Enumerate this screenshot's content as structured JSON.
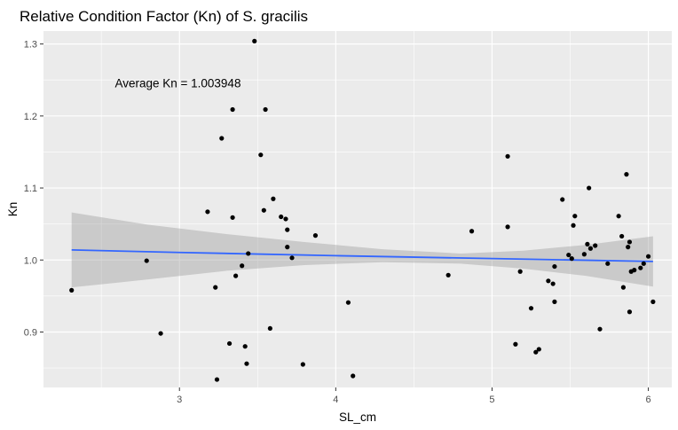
{
  "chart_data": {
    "type": "scatter",
    "title": "Relative Condition Factor (Kn) of S. gracilis",
    "xlabel": "SL_cm",
    "ylabel": "Kn",
    "xlim": [
      2.13,
      6.15
    ],
    "ylim": [
      0.823,
      1.318
    ],
    "x_ticks": [
      3,
      4,
      5,
      6
    ],
    "y_ticks": [
      0.9,
      1.0,
      1.1,
      1.2,
      1.3
    ],
    "x_tick_labels": [
      "3",
      "4",
      "5",
      "6"
    ],
    "y_tick_labels": [
      "0.9",
      "1.0",
      "1.1",
      "1.2",
      "1.3"
    ],
    "grid": true,
    "annotation": {
      "text": "Average Kn = 1.003948",
      "x": 2.99,
      "y": 1.246
    },
    "points": [
      {
        "x": 2.31,
        "y": 0.958
      },
      {
        "x": 2.79,
        "y": 0.999
      },
      {
        "x": 2.88,
        "y": 0.898
      },
      {
        "x": 3.18,
        "y": 1.067
      },
      {
        "x": 3.23,
        "y": 0.962
      },
      {
        "x": 3.24,
        "y": 0.834
      },
      {
        "x": 3.27,
        "y": 1.169
      },
      {
        "x": 3.32,
        "y": 0.884
      },
      {
        "x": 3.34,
        "y": 1.209
      },
      {
        "x": 3.34,
        "y": 1.059
      },
      {
        "x": 3.36,
        "y": 0.978
      },
      {
        "x": 3.4,
        "y": 0.992
      },
      {
        "x": 3.42,
        "y": 0.88
      },
      {
        "x": 3.43,
        "y": 0.856
      },
      {
        "x": 3.44,
        "y": 1.009
      },
      {
        "x": 3.48,
        "y": 1.304
      },
      {
        "x": 3.52,
        "y": 1.146
      },
      {
        "x": 3.54,
        "y": 1.069
      },
      {
        "x": 3.55,
        "y": 1.209
      },
      {
        "x": 3.58,
        "y": 0.905
      },
      {
        "x": 3.6,
        "y": 1.085
      },
      {
        "x": 3.65,
        "y": 1.06
      },
      {
        "x": 3.68,
        "y": 1.057
      },
      {
        "x": 3.69,
        "y": 1.042
      },
      {
        "x": 3.69,
        "y": 1.018
      },
      {
        "x": 3.72,
        "y": 1.003
      },
      {
        "x": 3.79,
        "y": 0.855
      },
      {
        "x": 3.87,
        "y": 1.034
      },
      {
        "x": 4.08,
        "y": 0.941
      },
      {
        "x": 4.11,
        "y": 0.839
      },
      {
        "x": 4.72,
        "y": 0.979
      },
      {
        "x": 4.87,
        "y": 1.04
      },
      {
        "x": 5.1,
        "y": 1.144
      },
      {
        "x": 5.1,
        "y": 1.046
      },
      {
        "x": 5.15,
        "y": 0.883
      },
      {
        "x": 5.18,
        "y": 0.984
      },
      {
        "x": 5.25,
        "y": 0.933
      },
      {
        "x": 5.28,
        "y": 0.872
      },
      {
        "x": 5.3,
        "y": 0.876
      },
      {
        "x": 5.36,
        "y": 0.971
      },
      {
        "x": 5.39,
        "y": 0.967
      },
      {
        "x": 5.4,
        "y": 0.942
      },
      {
        "x": 5.4,
        "y": 0.991
      },
      {
        "x": 5.45,
        "y": 1.084
      },
      {
        "x": 5.49,
        "y": 1.007
      },
      {
        "x": 5.51,
        "y": 1.002
      },
      {
        "x": 5.52,
        "y": 1.048
      },
      {
        "x": 5.53,
        "y": 1.061
      },
      {
        "x": 5.59,
        "y": 1.008
      },
      {
        "x": 5.61,
        "y": 1.022
      },
      {
        "x": 5.62,
        "y": 1.1
      },
      {
        "x": 5.63,
        "y": 1.016
      },
      {
        "x": 5.66,
        "y": 1.02
      },
      {
        "x": 5.69,
        "y": 0.904
      },
      {
        "x": 5.74,
        "y": 0.995
      },
      {
        "x": 5.81,
        "y": 1.061
      },
      {
        "x": 5.83,
        "y": 1.033
      },
      {
        "x": 5.84,
        "y": 0.962
      },
      {
        "x": 5.86,
        "y": 1.119
      },
      {
        "x": 5.87,
        "y": 1.018
      },
      {
        "x": 5.88,
        "y": 0.928
      },
      {
        "x": 5.88,
        "y": 1.025
      },
      {
        "x": 5.89,
        "y": 0.984
      },
      {
        "x": 5.91,
        "y": 0.986
      },
      {
        "x": 5.95,
        "y": 0.989
      },
      {
        "x": 5.97,
        "y": 0.995
      },
      {
        "x": 6.0,
        "y": 1.005
      },
      {
        "x": 6.03,
        "y": 0.942
      }
    ],
    "fit_line": {
      "color": "#3366FF",
      "x": [
        2.31,
        3.0,
        4.0,
        5.0,
        6.03
      ],
      "y": [
        1.014,
        1.0105,
        1.006,
        1.002,
        0.998
      ]
    },
    "confidence_band": {
      "color": "#999999",
      "x": [
        2.31,
        2.8,
        3.3,
        3.8,
        4.3,
        4.8,
        5.2,
        5.6,
        6.03
      ],
      "lower": [
        0.962,
        0.973,
        0.985,
        0.993,
        0.997,
        0.995,
        0.988,
        0.978,
        0.963
      ],
      "upper": [
        1.066,
        1.049,
        1.036,
        1.025,
        1.015,
        1.009,
        1.013,
        1.021,
        1.033
      ]
    },
    "colors": {
      "panel_background": "#EBEBEB",
      "grid": "#FFFFFF",
      "points": "#000000"
    }
  }
}
